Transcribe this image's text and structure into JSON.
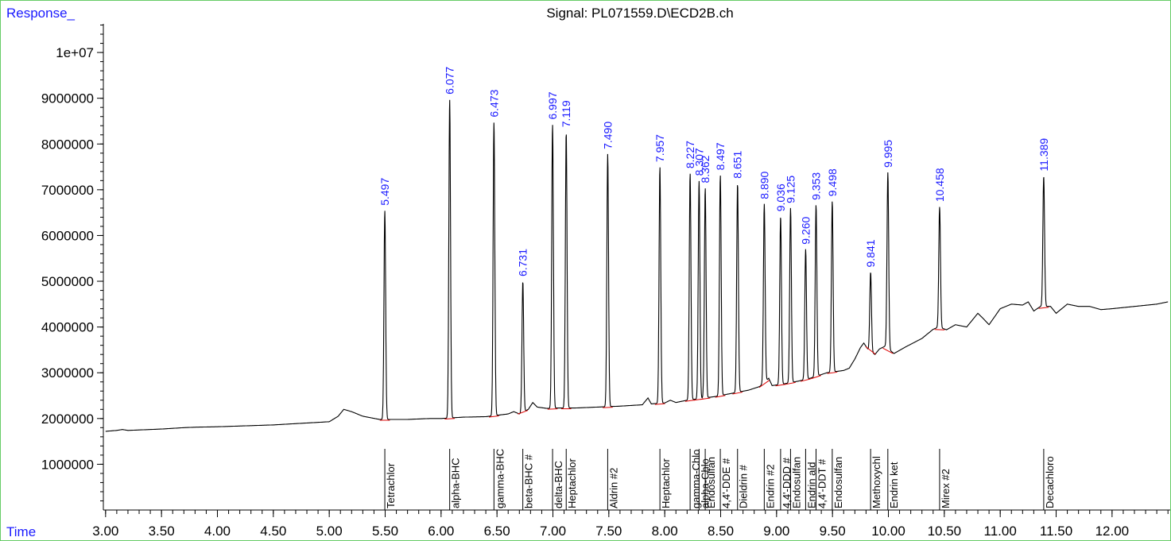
{
  "chart_data": {
    "type": "line",
    "title": "Signal: PL071559.D\\ECD2B.ch",
    "ylabel": "Response_",
    "xlabel": "Time",
    "xlim": [
      2.98,
      12.52
    ],
    "ylim": [
      0,
      10800000
    ],
    "x_ticks": [
      "3.00",
      "3.50",
      "4.00",
      "4.50",
      "5.00",
      "5.50",
      "6.00",
      "6.50",
      "7.00",
      "7.50",
      "8.00",
      "8.50",
      "9.00",
      "9.50",
      "10.00",
      "10.50",
      "11.00",
      "11.50",
      "12.00"
    ],
    "y_ticks": [
      "1000000",
      "2000000",
      "3000000",
      "4000000",
      "5000000",
      "6000000",
      "7000000",
      "8000000",
      "9000000",
      "1e+07"
    ],
    "colors": {
      "trace": "#000000",
      "baseline": "#dd0000",
      "rt_label": "#1a1aff",
      "frame": "#66cc66"
    },
    "baseline_points": [
      [
        3.0,
        1720000
      ],
      [
        3.1,
        1740000
      ],
      [
        3.15,
        1760000
      ],
      [
        3.2,
        1740000
      ],
      [
        3.5,
        1770000
      ],
      [
        3.7,
        1800000
      ],
      [
        3.8,
        1810000
      ],
      [
        4.0,
        1820000
      ],
      [
        4.5,
        1860000
      ],
      [
        5.0,
        1930000
      ],
      [
        5.08,
        2050000
      ],
      [
        5.13,
        2200000
      ],
      [
        5.2,
        2150000
      ],
      [
        5.3,
        2050000
      ],
      [
        5.45,
        1980000
      ],
      [
        5.7,
        1980000
      ],
      [
        5.9,
        2000000
      ],
      [
        6.0,
        2000000
      ],
      [
        6.2,
        2030000
      ],
      [
        6.4,
        2040000
      ],
      [
        6.6,
        2100000
      ],
      [
        6.65,
        2150000
      ],
      [
        6.7,
        2100000
      ],
      [
        6.78,
        2200000
      ],
      [
        6.82,
        2350000
      ],
      [
        6.86,
        2250000
      ],
      [
        6.95,
        2220000
      ],
      [
        7.05,
        2230000
      ],
      [
        7.2,
        2230000
      ],
      [
        7.4,
        2250000
      ],
      [
        7.6,
        2270000
      ],
      [
        7.8,
        2300000
      ],
      [
        7.85,
        2450000
      ],
      [
        7.88,
        2320000
      ],
      [
        8.0,
        2340000
      ],
      [
        8.05,
        2400000
      ],
      [
        8.1,
        2350000
      ],
      [
        8.2,
        2400000
      ],
      [
        8.3,
        2430000
      ],
      [
        8.45,
        2480000
      ],
      [
        8.6,
        2550000
      ],
      [
        8.75,
        2620000
      ],
      [
        8.85,
        2700000
      ],
      [
        8.93,
        2880000
      ],
      [
        8.96,
        2720000
      ],
      [
        9.05,
        2750000
      ],
      [
        9.2,
        2820000
      ],
      [
        9.3,
        2880000
      ],
      [
        9.45,
        3000000
      ],
      [
        9.6,
        3050000
      ],
      [
        9.65,
        3100000
      ],
      [
        9.7,
        3300000
      ],
      [
        9.75,
        3550000
      ],
      [
        9.78,
        3650000
      ],
      [
        9.82,
        3500000
      ],
      [
        9.88,
        3400000
      ],
      [
        9.92,
        3520000
      ],
      [
        9.97,
        3580000
      ],
      [
        10.05,
        3420000
      ],
      [
        10.15,
        3560000
      ],
      [
        10.3,
        3750000
      ],
      [
        10.4,
        3950000
      ],
      [
        10.45,
        4000000
      ],
      [
        10.52,
        3940000
      ],
      [
        10.6,
        4050000
      ],
      [
        10.7,
        4000000
      ],
      [
        10.8,
        4300000
      ],
      [
        10.85,
        4180000
      ],
      [
        10.9,
        4050000
      ],
      [
        11.0,
        4400000
      ],
      [
        11.1,
        4500000
      ],
      [
        11.2,
        4480000
      ],
      [
        11.25,
        4550000
      ],
      [
        11.3,
        4350000
      ],
      [
        11.36,
        4450000
      ],
      [
        11.45,
        4450000
      ],
      [
        11.5,
        4300000
      ],
      [
        11.6,
        4500000
      ],
      [
        11.7,
        4450000
      ],
      [
        11.8,
        4450000
      ],
      [
        11.9,
        4380000
      ],
      [
        12.0,
        4400000
      ],
      [
        12.2,
        4450000
      ],
      [
        12.4,
        4500000
      ],
      [
        12.5,
        4550000
      ]
    ],
    "peaks": [
      {
        "rt": 5.497,
        "label": "5.497",
        "height": 6550000,
        "compound": "Tetrachlor"
      },
      {
        "rt": 6.077,
        "label": "6.077",
        "height": 8980000,
        "compound": "alpha-BHC"
      },
      {
        "rt": 6.473,
        "label": "6.473",
        "height": 8480000,
        "compound": "gamma-BHC"
      },
      {
        "rt": 6.731,
        "label": "6.731",
        "height": 5000000,
        "compound": "beta-BHC #"
      },
      {
        "rt": 6.997,
        "label": "6.997",
        "height": 8430000,
        "compound": "delta-BHC"
      },
      {
        "rt": 7.119,
        "label": "7.119",
        "height": 8260000,
        "compound": "Heptachlor"
      },
      {
        "rt": 7.49,
        "label": "7.490",
        "height": 7780000,
        "compound": "Aldrin #2"
      },
      {
        "rt": 7.957,
        "label": "7.957",
        "height": 7500000,
        "compound": "Heptachlor"
      },
      {
        "rt": 8.227,
        "label": "8.227",
        "height": 7360000,
        "compound": "gamma-Chlo"
      },
      {
        "rt": 8.307,
        "label": "8.307",
        "height": 7200000,
        "compound": "alpha-Chlo"
      },
      {
        "rt": 8.362,
        "label": "8.362",
        "height": 7040000,
        "compound": "Endosulfan"
      },
      {
        "rt": 8.497,
        "label": "8.497",
        "height": 7320000,
        "compound": "4,4'-DDE #"
      },
      {
        "rt": 8.651,
        "label": "8.651",
        "height": 7140000,
        "compound": "Dieldrin #"
      },
      {
        "rt": 8.89,
        "label": "8.890",
        "height": 6690000,
        "compound": "Endrin #2"
      },
      {
        "rt": 9.036,
        "label": "9.036",
        "height": 6420000,
        "compound": "4,4'-DDD #"
      },
      {
        "rt": 9.125,
        "label": "9.125",
        "height": 6600000,
        "compound": "Endosulfan"
      },
      {
        "rt": 9.26,
        "label": "9.260",
        "height": 5700000,
        "compound": "Endrin ald"
      },
      {
        "rt": 9.353,
        "label": "9.353",
        "height": 6670000,
        "compound": "4,4'-DDT #"
      },
      {
        "rt": 9.498,
        "label": "9.498",
        "height": 6750000,
        "compound": "Endosulfan"
      },
      {
        "rt": 9.841,
        "label": "9.841",
        "height": 5200000,
        "compound": "Methoxychl"
      },
      {
        "rt": 9.995,
        "label": "9.995",
        "height": 7380000,
        "compound": "Endrin ket"
      },
      {
        "rt": 10.458,
        "label": "10.458",
        "height": 6630000,
        "compound": "Mirex #2"
      },
      {
        "rt": 11.389,
        "label": "11.389",
        "height": 7300000,
        "compound": "Decachloro"
      }
    ]
  }
}
